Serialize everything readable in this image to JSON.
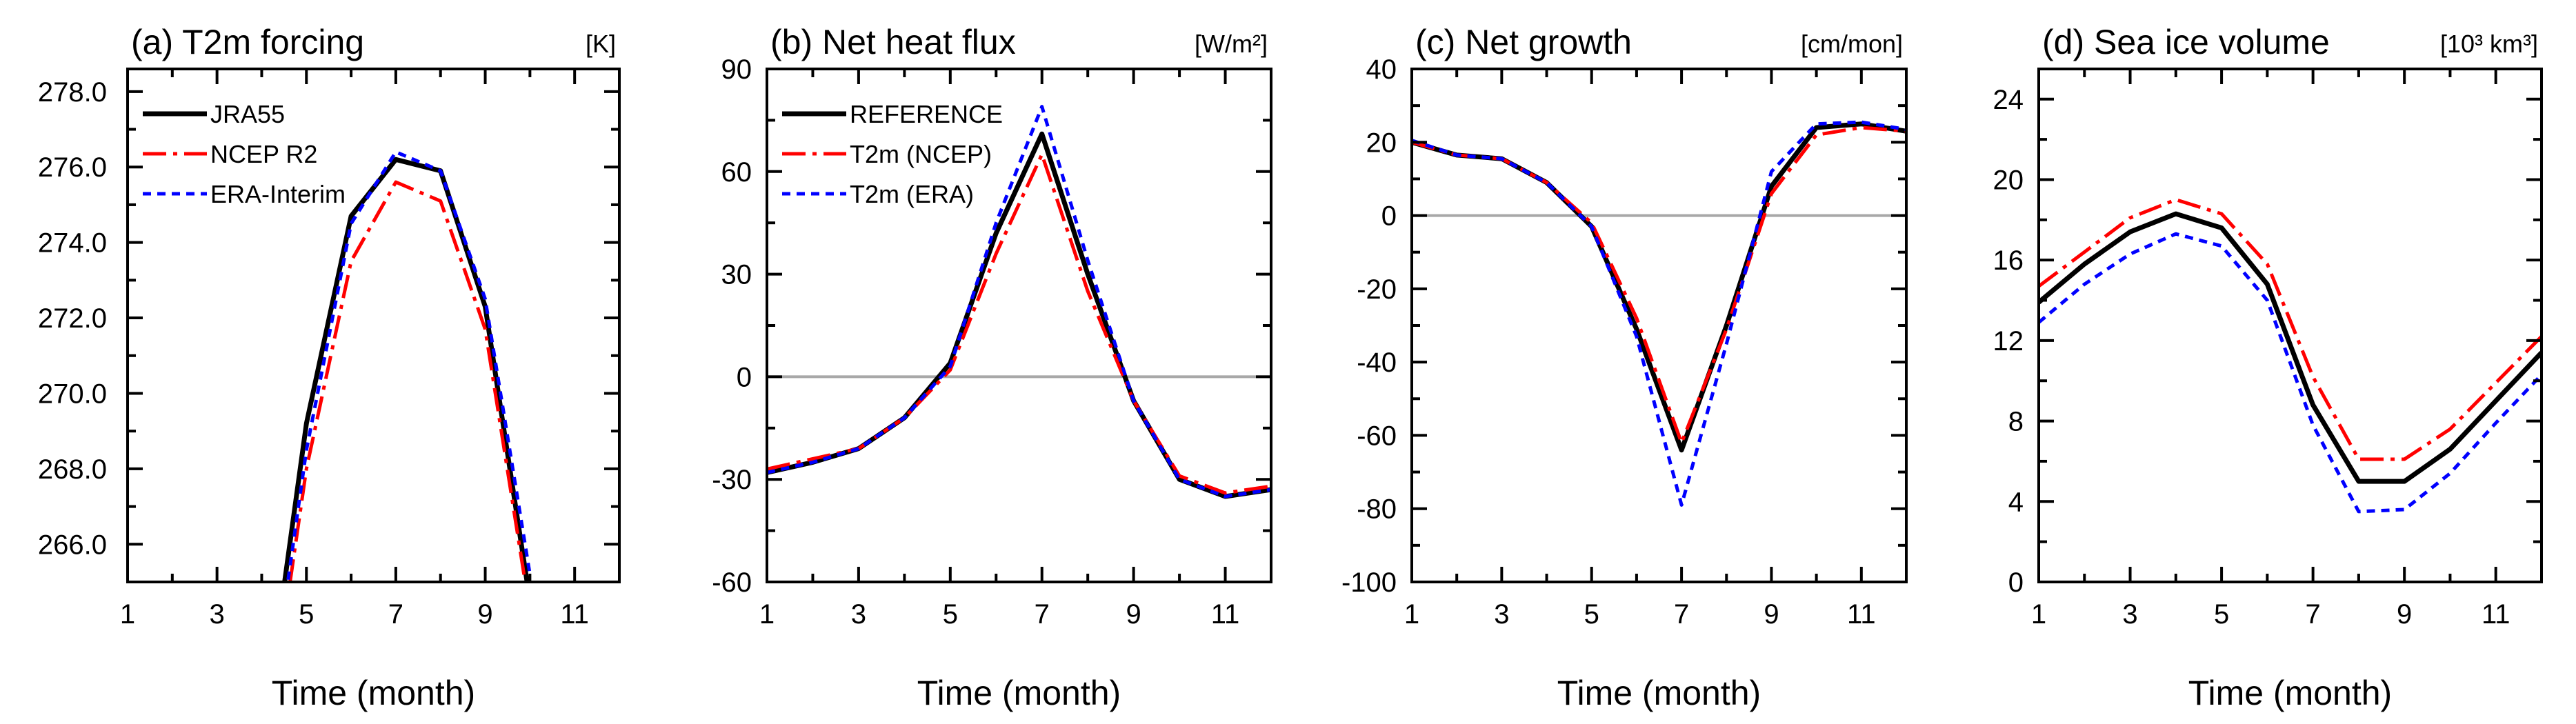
{
  "figure": {
    "xlabel": "Time (month)"
  },
  "colors": {
    "black": "#000000",
    "red": "#ff0000",
    "blue": "#0000ff",
    "zero_line": "#a8a8a8"
  },
  "chart_data": [
    {
      "type": "line",
      "panel": "a",
      "title": "(a) T2m forcing",
      "unit": "[K]",
      "xlabel": "Time (month)",
      "xlim": [
        1,
        12
      ],
      "xticks": [
        1,
        3,
        5,
        7,
        9,
        11
      ],
      "xminor": [
        2,
        4,
        6,
        8,
        10,
        12
      ],
      "ylim": [
        265,
        278.6
      ],
      "yticks": [
        266,
        268,
        270,
        272,
        274,
        276,
        278
      ],
      "ytick_labels": [
        "266.0",
        "268.0",
        "270.0",
        "272.0",
        "274.0",
        "276.0",
        "278.0"
      ],
      "ytick_labels_right": false,
      "zero_line": false,
      "legend": "top-left",
      "legend_labels": [
        "JRA55",
        "NCEP R2",
        "ERA-Interim"
      ],
      "x": [
        4.5,
        5,
        6,
        7,
        8,
        9,
        10
      ],
      "series": [
        {
          "name": "JRA55",
          "values": [
            264.9,
            269.2,
            274.7,
            276.2,
            275.9,
            272.3,
            264.5
          ]
        },
        {
          "name": "NCEP R2",
          "values": [
            263.9,
            268.0,
            273.5,
            275.6,
            275.1,
            271.7,
            264.2
          ]
        },
        {
          "name": "ERA-Interim",
          "values": [
            264.3,
            268.5,
            274.5,
            276.4,
            275.9,
            272.5,
            265.2
          ]
        }
      ]
    },
    {
      "type": "line",
      "panel": "b",
      "title": "(b) Net heat flux",
      "unit": "[W/m²]",
      "xlabel": "Time (month)",
      "xlim": [
        1,
        12
      ],
      "xticks": [
        1,
        3,
        5,
        7,
        9,
        11
      ],
      "xminor": [
        2,
        4,
        6,
        8,
        10,
        12
      ],
      "ylim": [
        -60,
        90
      ],
      "yticks": [
        -60,
        -30,
        0,
        30,
        60,
        90
      ],
      "ytick_labels": [
        "-60",
        "-30",
        "0",
        "30",
        "60",
        "90"
      ],
      "ytick_labels_right": false,
      "zero_line": true,
      "legend": "top-left",
      "legend_labels": [
        "REFERENCE",
        "T2m (NCEP)",
        "T2m (ERA)"
      ],
      "x": [
        1,
        2,
        3,
        4,
        5,
        6,
        7,
        8,
        9,
        10,
        11,
        12
      ],
      "series": [
        {
          "name": "REFERENCE",
          "values": [
            -28,
            -25,
            -21,
            -12,
            4,
            42,
            71,
            30,
            -7,
            -30,
            -35,
            -33
          ]
        },
        {
          "name": "T2m (NCEP)",
          "values": [
            -27,
            -24,
            -21,
            -12,
            2,
            36,
            65,
            25,
            -7,
            -29,
            -34,
            -32
          ]
        },
        {
          "name": "T2m (ERA)",
          "values": [
            -28,
            -25,
            -21,
            -12,
            3,
            45,
            79,
            34,
            -7,
            -30,
            -35,
            -33
          ]
        }
      ]
    },
    {
      "type": "line",
      "panel": "c",
      "title": "(c) Net growth",
      "unit": "[cm/mon]",
      "xlabel": "Time (month)",
      "xlim": [
        1,
        12
      ],
      "xticks": [
        1,
        3,
        5,
        7,
        9,
        11
      ],
      "xminor": [
        2,
        4,
        6,
        8,
        10,
        12
      ],
      "ylim": [
        -100,
        40
      ],
      "yticks": [
        -100,
        -80,
        -60,
        -40,
        -20,
        0,
        20,
        40
      ],
      "ytick_labels": [
        "-100",
        "-80",
        "-60",
        "-40",
        "-20",
        "0",
        "20",
        "40"
      ],
      "ytick_labels_right": false,
      "zero_line": true,
      "legend": "none",
      "legend_labels": [],
      "x": [
        1,
        2,
        3,
        4,
        5,
        6,
        7,
        8,
        9,
        10,
        11,
        12
      ],
      "series": [
        {
          "name": "",
          "values": [
            20,
            16.5,
            15.5,
            9,
            -3,
            -31,
            -64,
            -30,
            8,
            24,
            25,
            23
          ]
        },
        {
          "name": "",
          "values": [
            20,
            16.5,
            15.5,
            9,
            -2,
            -28,
            -62,
            -31,
            6,
            22,
            24,
            23
          ]
        },
        {
          "name": "",
          "values": [
            20.5,
            16.5,
            15.5,
            9,
            -3,
            -33,
            -79,
            -35,
            12,
            25,
            25.5,
            23.5
          ]
        }
      ]
    },
    {
      "type": "line",
      "panel": "d",
      "title": "(d) Sea ice volume",
      "unit": "[10³ km³]",
      "xlabel": "Time (month)",
      "xlim": [
        1,
        12
      ],
      "xticks": [
        1,
        3,
        5,
        7,
        9,
        11
      ],
      "xminor": [
        2,
        4,
        6,
        8,
        10,
        12
      ],
      "ylim": [
        0,
        25.5
      ],
      "yticks": [
        0,
        4,
        8,
        12,
        16,
        20,
        24
      ],
      "ytick_labels": [
        "0",
        "4",
        "8",
        "12",
        "16",
        "20",
        "24"
      ],
      "ytick_labels_right": false,
      "zero_line": false,
      "legend": "none",
      "legend_labels": [],
      "x": [
        1,
        2,
        3,
        4,
        5,
        6,
        7,
        8,
        9,
        10,
        11,
        12
      ],
      "series": [
        {
          "name": "",
          "values": [
            13.9,
            15.8,
            17.4,
            18.3,
            17.6,
            14.8,
            8.8,
            5.0,
            5.0,
            6.6,
            9.0,
            11.4
          ]
        },
        {
          "name": "",
          "values": [
            14.7,
            16.4,
            18.1,
            19.0,
            18.3,
            15.8,
            10.2,
            6.1,
            6.1,
            7.6,
            9.9,
            12.2
          ]
        },
        {
          "name": "",
          "values": [
            12.9,
            14.8,
            16.3,
            17.3,
            16.7,
            14.0,
            7.8,
            3.5,
            3.6,
            5.4,
            7.9,
            10.3
          ]
        }
      ]
    }
  ]
}
